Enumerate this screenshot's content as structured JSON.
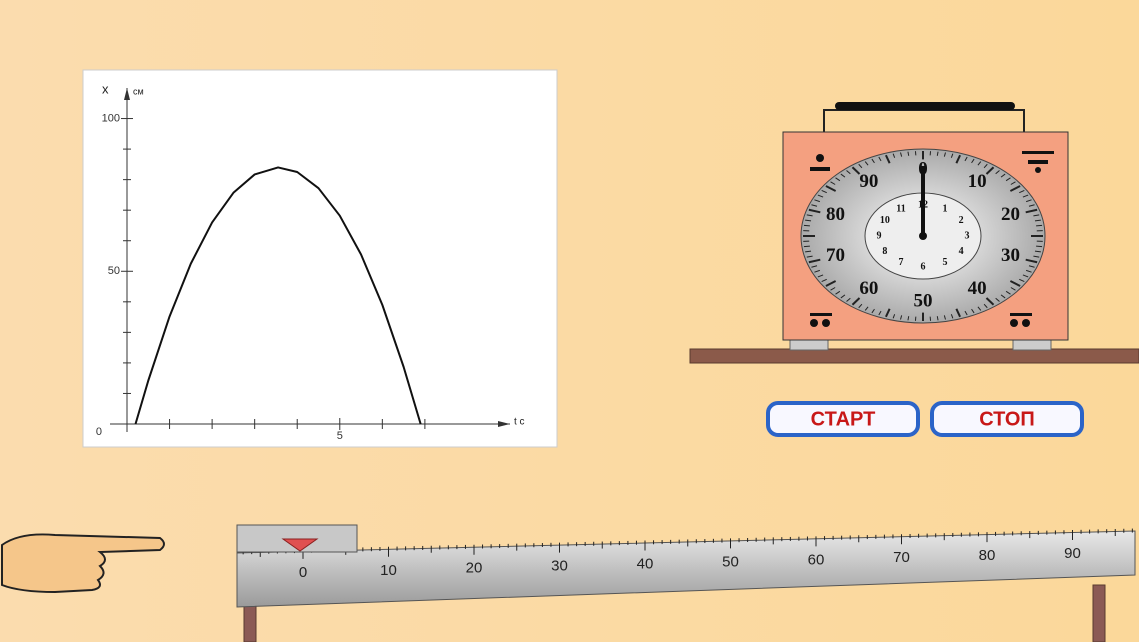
{
  "chart_data": {
    "type": "line",
    "ylabel": "x",
    "yunit": "см",
    "xlabel": "t с",
    "x": [
      0.2,
      0.5,
      1,
      1.5,
      2,
      2.5,
      3,
      3.55,
      4,
      4.5,
      5,
      5.5,
      6,
      6.5,
      6.9
    ],
    "values": [
      0,
      14.2,
      35.2,
      52.5,
      66.0,
      75.7,
      81.7,
      84,
      82.5,
      77.2,
      68.2,
      55.5,
      39.0,
      18.7,
      0
    ],
    "color": "#111111",
    "xlim": [
      0,
      9
    ],
    "ylim": [
      0,
      110
    ],
    "xticks": [
      5
    ],
    "yticks": [
      0,
      50,
      100
    ],
    "xminor": [
      1,
      2,
      3,
      4,
      6,
      7
    ],
    "yminor": [
      10,
      20,
      30,
      40,
      60,
      70,
      80,
      90
    ]
  },
  "stopwatch": {
    "outer_labels": [
      "0",
      "10",
      "20",
      "30",
      "40",
      "50",
      "60",
      "70",
      "80",
      "90"
    ],
    "inner_labels": [
      "12",
      "1",
      "2",
      "3",
      "4",
      "5",
      "6",
      "7",
      "8",
      "9",
      "10",
      "11"
    ]
  },
  "buttons": [
    "СТАРТ",
    "СТОП"
  ],
  "ruler": {
    "labels": [
      "0",
      "10",
      "20",
      "30",
      "40",
      "50",
      "60",
      "70",
      "80",
      "90"
    ]
  }
}
